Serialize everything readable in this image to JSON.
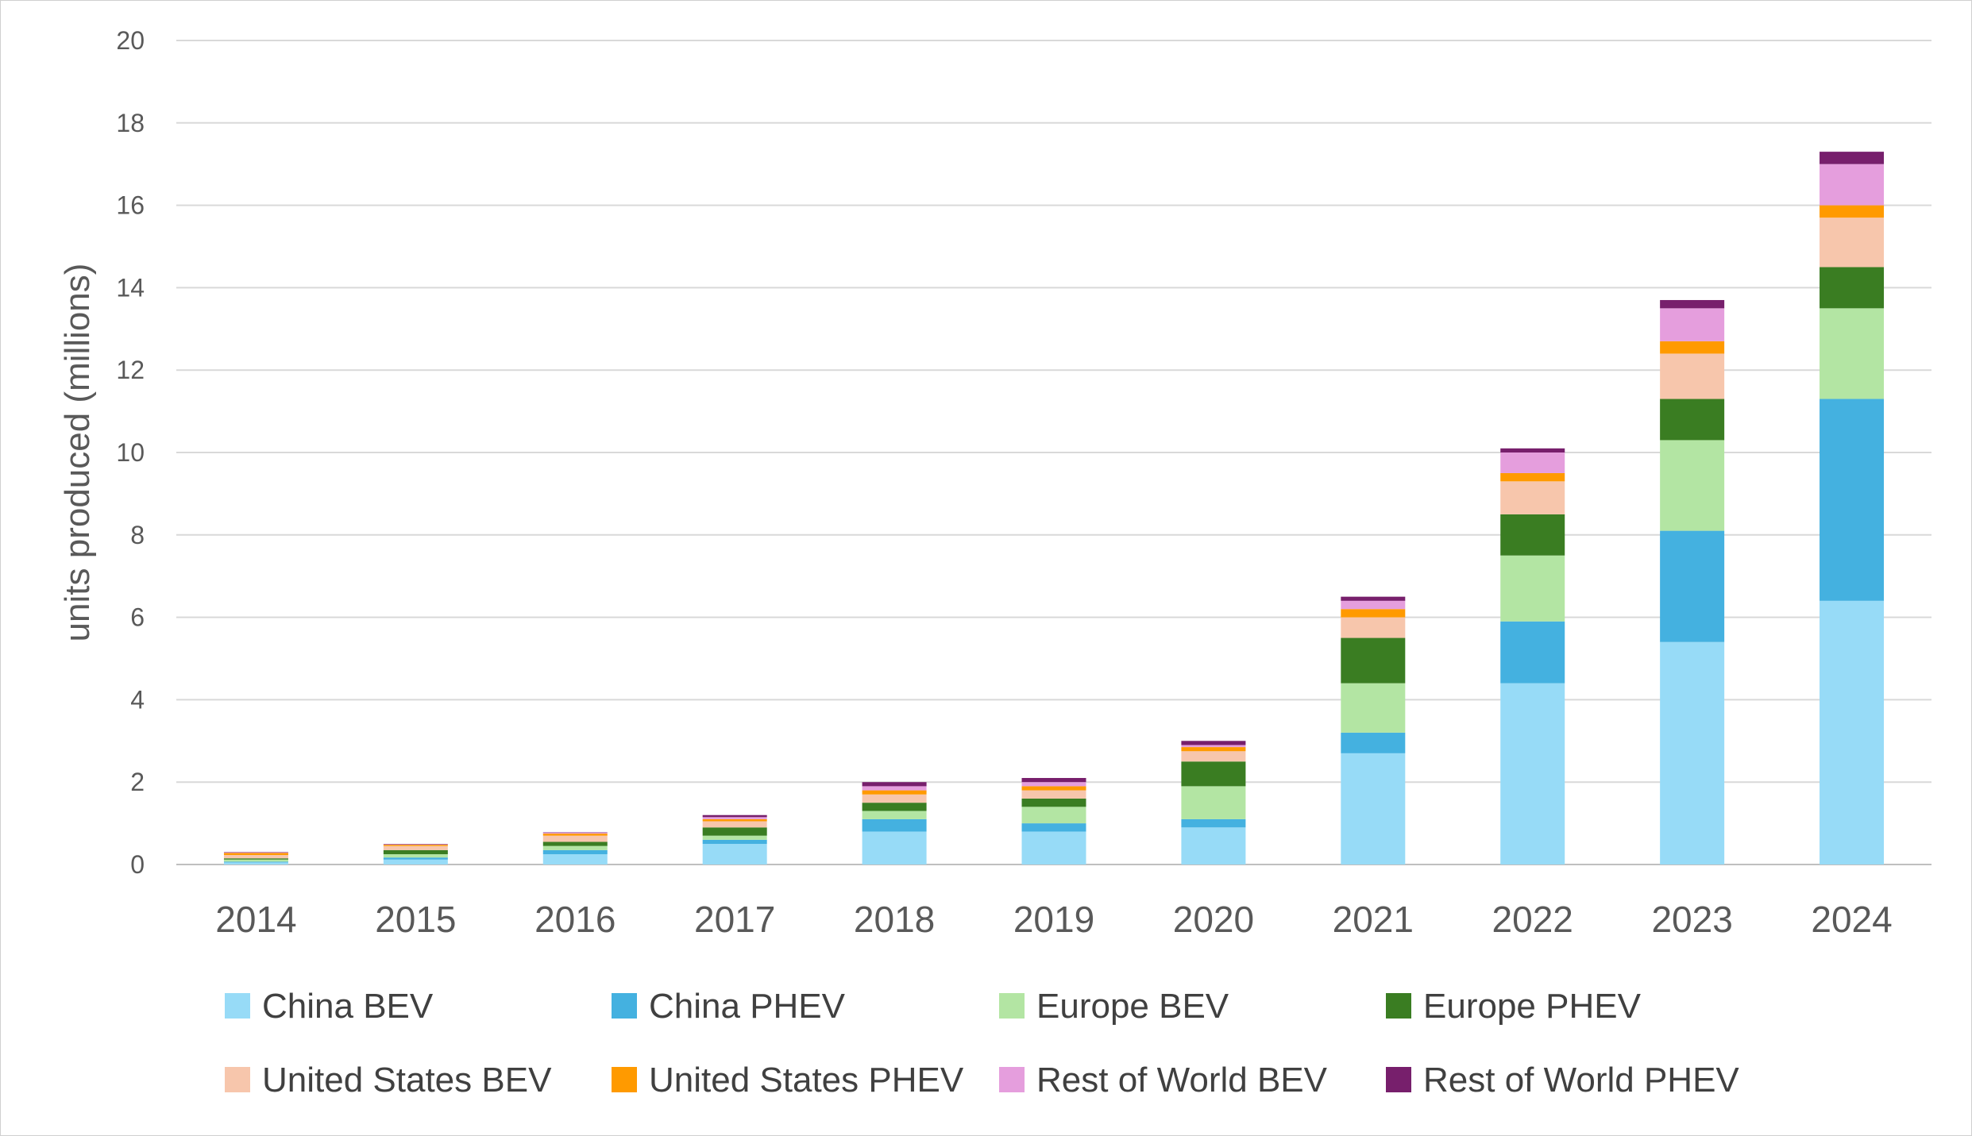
{
  "chart_data": {
    "type": "bar",
    "stacked": true,
    "title": "",
    "xlabel": "",
    "ylabel": "units produced (millions)",
    "ylim": [
      0,
      20
    ],
    "yticks": [
      0,
      2,
      4,
      6,
      8,
      10,
      12,
      14,
      16,
      18,
      20
    ],
    "grid": "horizontal",
    "legend_position": "bottom",
    "categories": [
      "2014",
      "2015",
      "2016",
      "2017",
      "2018",
      "2019",
      "2020",
      "2021",
      "2022",
      "2023",
      "2024"
    ],
    "series": [
      {
        "name": "China BEV",
        "color": "#97DBF7",
        "values": [
          0.05,
          0.12,
          0.25,
          0.5,
          0.8,
          0.8,
          0.9,
          2.7,
          4.4,
          5.4,
          6.4
        ]
      },
      {
        "name": "China PHEV",
        "color": "#44B1E0",
        "values": [
          0.02,
          0.05,
          0.1,
          0.1,
          0.3,
          0.2,
          0.2,
          0.5,
          1.5,
          2.7,
          4.9
        ]
      },
      {
        "name": "Europe BEV",
        "color": "#B3E5A3",
        "values": [
          0.05,
          0.08,
          0.1,
          0.1,
          0.2,
          0.4,
          0.8,
          1.2,
          1.6,
          2.2,
          2.2
        ]
      },
      {
        "name": "Europe PHEV",
        "color": "#3A7D22",
        "values": [
          0.03,
          0.1,
          0.1,
          0.2,
          0.2,
          0.2,
          0.6,
          1.1,
          1.0,
          1.0,
          1.0
        ]
      },
      {
        "name": "United States BEV",
        "color": "#F7C6AC",
        "values": [
          0.08,
          0.1,
          0.15,
          0.15,
          0.2,
          0.2,
          0.25,
          0.5,
          0.8,
          1.1,
          1.2
        ]
      },
      {
        "name": "United States PHEV",
        "color": "#FF9A00",
        "values": [
          0.05,
          0.03,
          0.05,
          0.05,
          0.1,
          0.1,
          0.1,
          0.2,
          0.2,
          0.3,
          0.3
        ]
      },
      {
        "name": "Rest of World BEV",
        "color": "#E59EDD",
        "values": [
          0.01,
          0.01,
          0.02,
          0.05,
          0.1,
          0.1,
          0.05,
          0.2,
          0.5,
          0.8,
          1.0
        ]
      },
      {
        "name": "Rest of World PHEV",
        "color": "#771F6C",
        "values": [
          0.01,
          0.01,
          0.01,
          0.05,
          0.1,
          0.1,
          0.1,
          0.1,
          0.1,
          0.2,
          0.3
        ]
      }
    ]
  }
}
